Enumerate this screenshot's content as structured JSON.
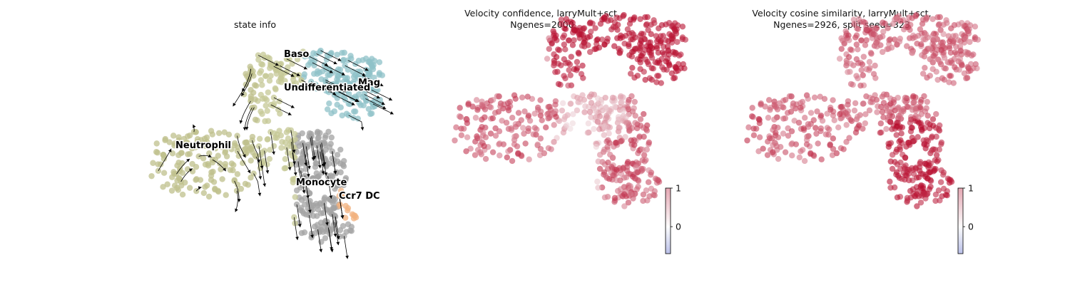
{
  "chart_data": [
    {
      "type": "scatter",
      "title": "state info",
      "legend": "on data",
      "clusters": [
        {
          "name": "Baso",
          "color": "#8fc1c8"
        },
        {
          "name": "Mag",
          "color": "#8fc1c8"
        },
        {
          "name": "Undifferentiated",
          "color": "#c6c896"
        },
        {
          "name": "Neutrophil",
          "color": "#bfc08c"
        },
        {
          "name": "Monocyte",
          "color": "#a3a3a3"
        },
        {
          "name": "Ccr7 DC",
          "color": "#f2b27f"
        }
      ],
      "streamlines": "on"
    },
    {
      "type": "scatter",
      "title": "Velocity confidence, larryMult+sct,\nNgenes=2000",
      "colorbar": {
        "ticks": [
          "1",
          "0"
        ],
        "vmin": -0.7,
        "vmax": 1
      },
      "colormap": [
        "#3b4cc0",
        "#f7f7f7",
        "#b40426"
      ]
    },
    {
      "type": "scatter",
      "title": "Velocity cosine similarity, larryMult+sct,\nNgenes=2926, split seed=323",
      "colorbar": {
        "ticks": [
          "1",
          "0"
        ],
        "vmin": -0.7,
        "vmax": 1
      },
      "colormap": [
        "#3b4cc0",
        "#f7f7f7",
        "#b40426"
      ]
    }
  ]
}
